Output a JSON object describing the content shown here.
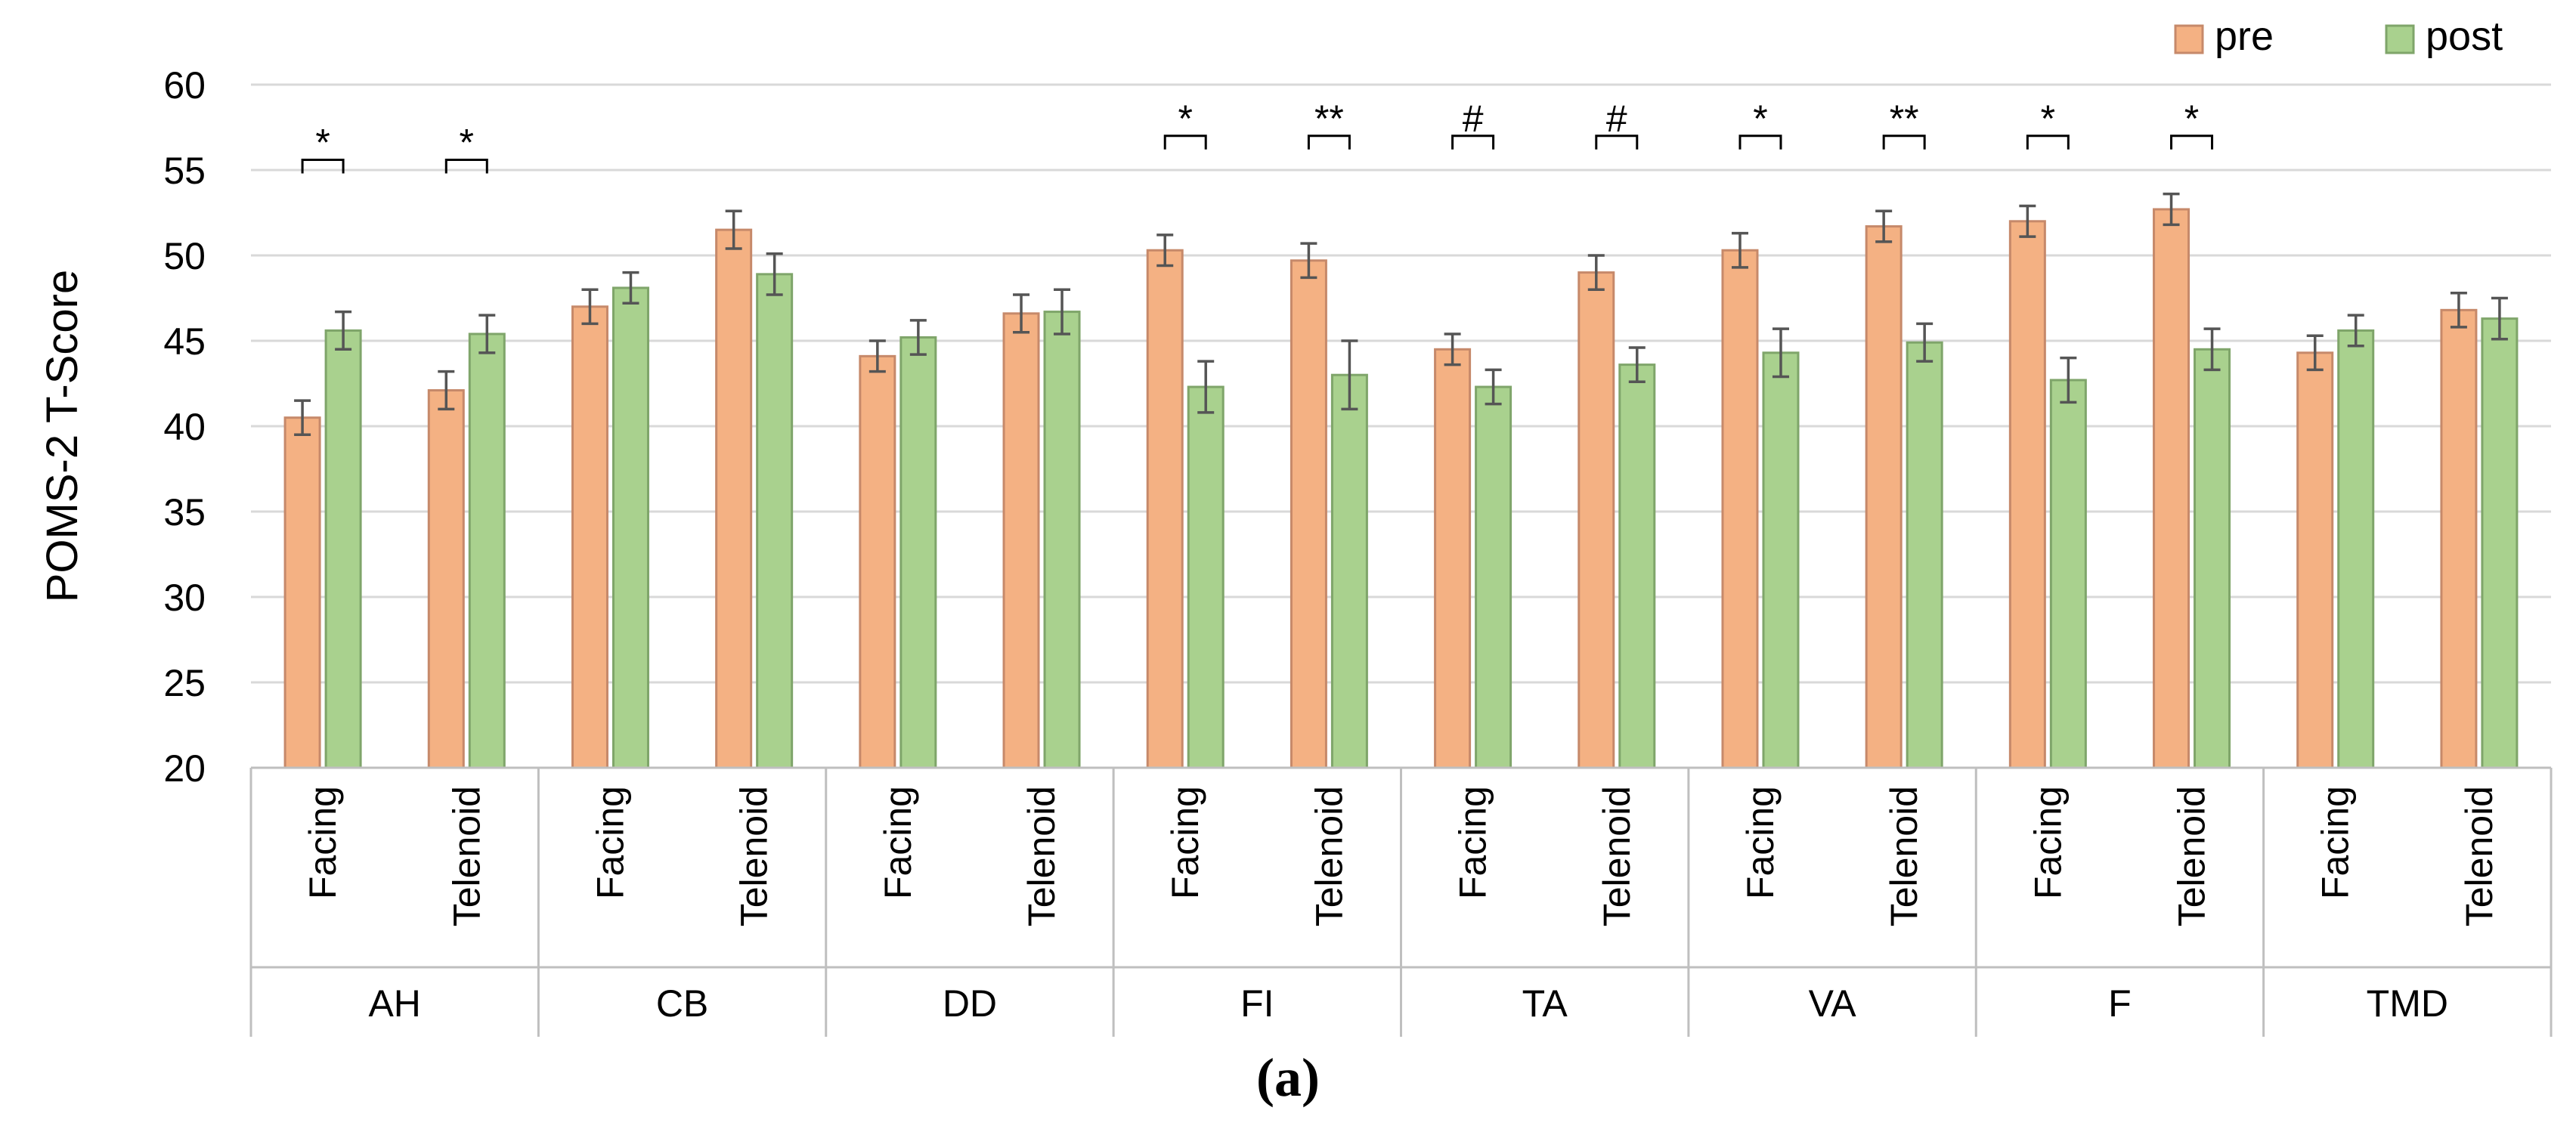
{
  "chart_data": {
    "type": "bar",
    "ylabel": "POMS-2 T-Score",
    "ylim": [
      20,
      60
    ],
    "yticks": [
      20,
      25,
      30,
      35,
      40,
      45,
      50,
      55,
      60
    ],
    "grid": true,
    "legend_position": "top-right",
    "caption": "(a)",
    "groups": [
      "AH",
      "CB",
      "DD",
      "FI",
      "TA",
      "VA",
      "F",
      "TMD"
    ],
    "conditions": [
      "Facing",
      "Telenoid"
    ],
    "series": [
      {
        "name": "pre",
        "color": "#F4B183",
        "edge": "#C6896A",
        "values": [
          40.5,
          42.1,
          47.0,
          51.5,
          44.1,
          46.6,
          50.3,
          49.7,
          44.5,
          49.0,
          50.3,
          51.7,
          52.0,
          52.7,
          44.3,
          46.8
        ],
        "errors": [
          1.0,
          1.1,
          1.0,
          1.1,
          0.9,
          1.1,
          0.9,
          1.0,
          0.9,
          1.0,
          1.0,
          0.9,
          0.9,
          0.9,
          1.0,
          1.0
        ]
      },
      {
        "name": "post",
        "color": "#A9D18E",
        "edge": "#7FA56A",
        "values": [
          45.6,
          45.4,
          48.1,
          48.9,
          45.2,
          46.7,
          42.3,
          43.0,
          42.3,
          43.6,
          44.3,
          44.9,
          42.7,
          44.5,
          45.6,
          46.3
        ],
        "errors": [
          1.1,
          1.1,
          0.9,
          1.2,
          1.0,
          1.3,
          1.5,
          2.0,
          1.0,
          1.0,
          1.4,
          1.1,
          1.3,
          1.2,
          0.9,
          1.2
        ]
      }
    ],
    "annotations": [
      {
        "index": 0,
        "label": "*",
        "level": 55.6
      },
      {
        "index": 1,
        "label": "*",
        "level": 55.6
      },
      {
        "index": 6,
        "label": "*",
        "level": 57.0
      },
      {
        "index": 7,
        "label": "**",
        "level": 57.0
      },
      {
        "index": 8,
        "label": "#",
        "level": 57.0
      },
      {
        "index": 9,
        "label": "#",
        "level": 57.0
      },
      {
        "index": 10,
        "label": "*",
        "level": 57.0
      },
      {
        "index": 11,
        "label": "**",
        "level": 57.0
      },
      {
        "index": 12,
        "label": "*",
        "level": 57.0
      },
      {
        "index": 13,
        "label": "*",
        "level": 57.0
      }
    ]
  }
}
